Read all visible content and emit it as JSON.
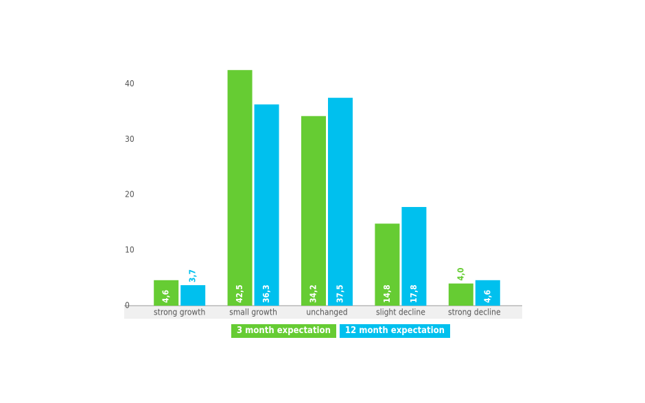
{
  "chart_data": {
    "type": "bar",
    "categories": [
      "strong growth",
      "small growth",
      "unchanged",
      "slight decline",
      "strong decline"
    ],
    "series": [
      {
        "name": "3 month expectation",
        "color": "#66cc33",
        "values": [
          4.6,
          42.5,
          34.2,
          14.8,
          4.0
        ],
        "value_labels": [
          "4,6",
          "42,5",
          "34,2",
          "14,8",
          "4,0"
        ]
      },
      {
        "name": "12 month expectation",
        "color": "#00c0ee",
        "values": [
          3.7,
          36.3,
          37.5,
          17.8,
          4.6
        ],
        "value_labels": [
          "3,7",
          "36,3",
          "37,5",
          "17,8",
          "4,6"
        ]
      }
    ],
    "ylim": [
      0,
      45
    ],
    "yticks": [
      0,
      10,
      20,
      30,
      40
    ]
  }
}
